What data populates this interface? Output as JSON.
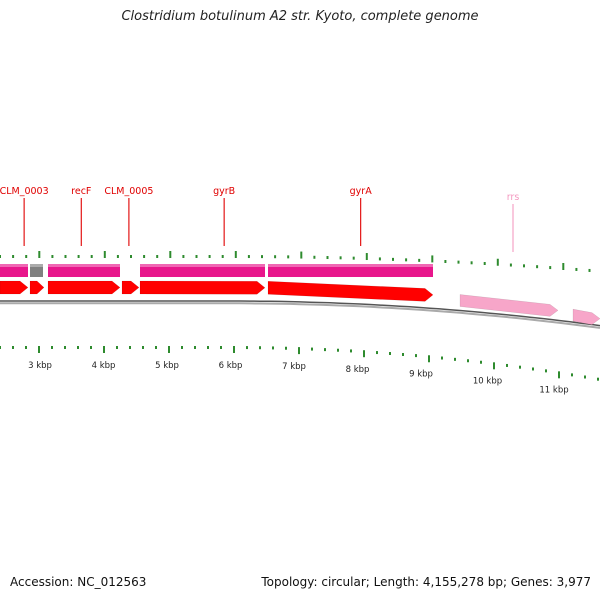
{
  "header": {
    "title": "Clostridium botulinum A2 str. Kyoto, complete genome"
  },
  "footer": {
    "accession": "Accession: NC_012563",
    "stats": "Topology: circular; Length: 4,155,278 bp; Genes: 3,977"
  },
  "colors": {
    "cds_forward": "#ff0000",
    "gene_forward": "#e8168c",
    "rrna": "#f7a6c9",
    "label_red": "#e00000",
    "label_pink": "#f49ac1",
    "tick": "#2e8b2e",
    "backbone": "#7a7a7a",
    "gap": "#808080"
  },
  "features": [
    {
      "name": "CLM_0003",
      "kbp": 2.75,
      "label": true
    },
    {
      "name": "recF",
      "kbp": 3.65,
      "label": true
    },
    {
      "name": "CLM_0005",
      "kbp": 4.4,
      "label": true
    },
    {
      "name": "gyrB",
      "kbp": 5.9,
      "label": true
    },
    {
      "name": "gyrA",
      "kbp": 8.05,
      "label": true
    },
    {
      "name": "rrs",
      "kbp": 10.3,
      "label": true,
      "type": "rRNA"
    }
  ],
  "kbp_ticks": [
    "3 kbp",
    "4 kbp",
    "5 kbp",
    "6 kbp",
    "7 kbp",
    "8 kbp",
    "9 kbp",
    "10 kbp",
    "11 kbp"
  ]
}
